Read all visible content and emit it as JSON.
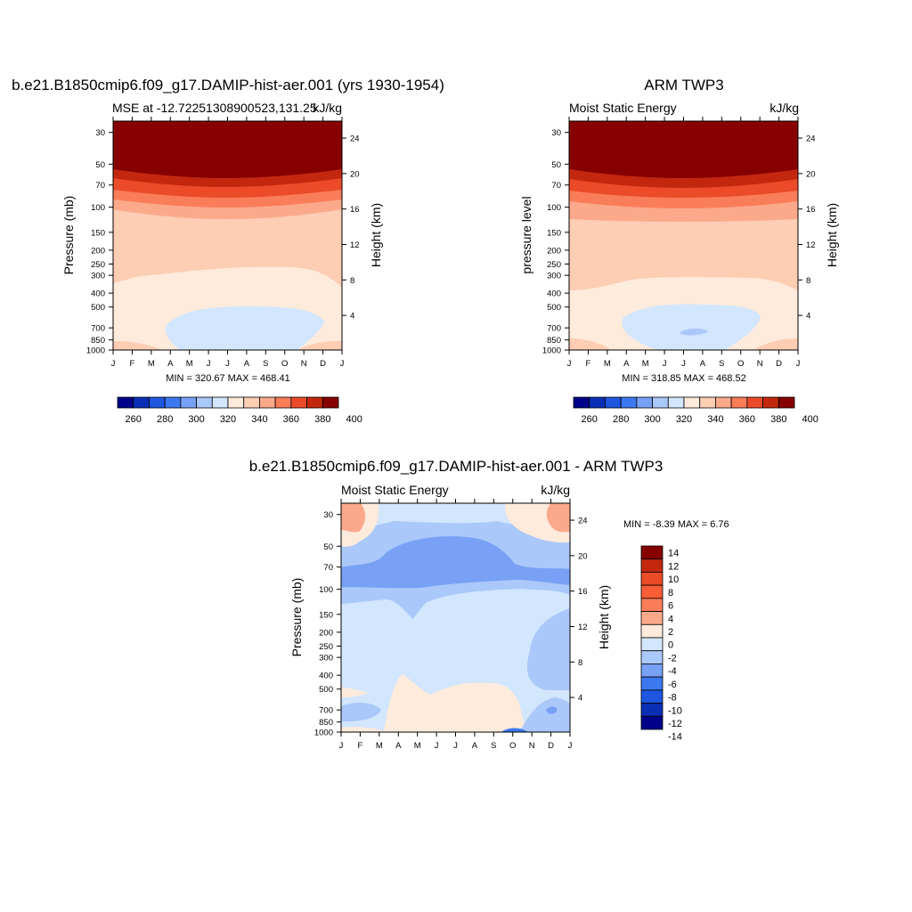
{
  "panels": [
    {
      "id": "model",
      "title": "b.e21.B1850cmip6.f09_g17.DAMIP-hist-aer.001 (yrs 1930-1954)",
      "subtitle_left": "MSE at -12.72251308900523,131.25",
      "subtitle_right": "kJ/kg",
      "ylabel_left": "Pressure (mb)",
      "ylabel_right": "Height (km)",
      "minmax": "MIN = 320.67  MAX = 468.41",
      "colorbar_labels": [
        "260",
        "280",
        "300",
        "320",
        "340",
        "360",
        "380",
        "400"
      ]
    },
    {
      "id": "obs",
      "title": "ARM TWP3",
      "subtitle_left": "Moist Static Energy",
      "subtitle_right": "kJ/kg",
      "ylabel_left": "pressure level",
      "ylabel_right": "Height (km)",
      "minmax": "MIN = 318.85  MAX = 468.52",
      "colorbar_labels": [
        "260",
        "280",
        "300",
        "320",
        "340",
        "360",
        "380",
        "400"
      ]
    },
    {
      "id": "diff",
      "title": "b.e21.B1850cmip6.f09_g17.DAMIP-hist-aer.001 - ARM TWP3",
      "subtitle_left": "Moist Static Energy",
      "subtitle_right": "kJ/kg",
      "ylabel_left": "Pressure (mb)",
      "ylabel_right": "Height (km)",
      "minmax": "MIN =  -8.39 MAX =   6.76",
      "colorbar_labels": [
        "14",
        "12",
        "10",
        "8",
        "6",
        "4",
        "2",
        "0",
        "-2",
        "-4",
        "-6",
        "-8",
        "-10",
        "-12",
        "-14"
      ]
    }
  ],
  "colors": {
    "abs_scale": [
      "#00008a",
      "#0a2fb5",
      "#1e56e0",
      "#3c78f0",
      "#78a0f5",
      "#aac8fa",
      "#d2e6fd",
      "#ffebdc",
      "#fdcdb4",
      "#fca98b",
      "#fa7d5a",
      "#eb4b28",
      "#c3280f",
      "#870000"
    ],
    "diff_scale": [
      "#870000",
      "#c3280f",
      "#eb4b28",
      "#fa5e37",
      "#fa7d5a",
      "#fca98b",
      "#ffebdc",
      "#d2e6fd",
      "#aac8fa",
      "#78a0f5",
      "#3c78f0",
      "#1e56e0",
      "#0a2fb5",
      "#00008a"
    ]
  },
  "chart_data": [
    {
      "type": "heatmap",
      "title": "b.e21.B1850cmip6.f09_g17.DAMIP-hist-aer.001 (yrs 1930-1954)",
      "subtitle": "MSE at -12.72251308900523,131.25",
      "units": "kJ/kg",
      "x_ticks": [
        "J",
        "F",
        "M",
        "A",
        "M",
        "J",
        "J",
        "A",
        "S",
        "O",
        "N",
        "D",
        "J"
      ],
      "y_ticks_pressure_mb": [
        30,
        50,
        70,
        100,
        150,
        200,
        250,
        300,
        400,
        500,
        700,
        850,
        1000
      ],
      "y_ticks_height_km": [
        4,
        8,
        12,
        16,
        20,
        24
      ],
      "ylabel": "Pressure (mb)",
      "ylabel_right": "Height (km)",
      "y_scale": "log",
      "min": 320.67,
      "max": 468.41,
      "contour_levels": [
        250,
        260,
        270,
        280,
        290,
        300,
        310,
        320,
        330,
        340,
        350,
        360,
        370,
        380,
        390,
        400
      ],
      "colorbar_labels": [
        260,
        280,
        300,
        320,
        340,
        360,
        380,
        400
      ],
      "band_boundaries_mb": {
        "above_400": [
          30,
          52
        ],
        "390_400": [
          52,
          60
        ],
        "380_390": [
          60,
          68
        ],
        "370_380": [
          68,
          80
        ],
        "360_370": [
          80,
          95
        ],
        "350_360": [
          95,
          120
        ],
        "340_350": [
          120,
          320
        ],
        "330_340": [
          320,
          1000
        ]
      },
      "region_320_330": {
        "months": "Feb-Dec",
        "pressure_mb": [
          500,
          1000
        ]
      }
    },
    {
      "type": "heatmap",
      "title": "ARM TWP3",
      "subtitle": "Moist Static Energy",
      "units": "kJ/kg",
      "x_ticks": [
        "J",
        "F",
        "M",
        "A",
        "M",
        "J",
        "J",
        "A",
        "S",
        "O",
        "N",
        "D",
        "J"
      ],
      "y_ticks_pressure_mb": [
        30,
        50,
        70,
        100,
        150,
        200,
        250,
        300,
        400,
        500,
        700,
        850,
        1000
      ],
      "y_ticks_height_km": [
        4,
        8,
        12,
        16,
        20,
        24
      ],
      "ylabel": "pressure level",
      "ylabel_right": "Height (km)",
      "y_scale": "log",
      "min": 318.85,
      "max": 468.52,
      "contour_levels": [
        250,
        260,
        270,
        280,
        290,
        300,
        310,
        320,
        330,
        340,
        350,
        360,
        370,
        380,
        390,
        400
      ],
      "colorbar_labels": [
        260,
        280,
        300,
        320,
        340,
        360,
        380,
        400
      ],
      "band_boundaries_mb": {
        "above_400": [
          30,
          52
        ],
        "390_400": [
          52,
          60
        ],
        "380_390": [
          60,
          68
        ],
        "370_380": [
          68,
          80
        ],
        "360_370": [
          80,
          95
        ],
        "350_360": [
          95,
          125
        ],
        "340_350": [
          125,
          380
        ],
        "330_340": [
          380,
          1000
        ]
      },
      "region_320_330": {
        "months": "Feb-Nov",
        "pressure_mb": [
          550,
          1000
        ]
      },
      "region_310_320": {
        "months": "Jul-Aug",
        "pressure_mb": [
          720,
          780
        ]
      }
    },
    {
      "type": "heatmap",
      "title": "b.e21.B1850cmip6.f09_g17.DAMIP-hist-aer.001 - ARM TWP3",
      "subtitle": "Moist Static Energy",
      "units": "kJ/kg",
      "x_ticks": [
        "J",
        "F",
        "M",
        "A",
        "M",
        "J",
        "J",
        "A",
        "S",
        "O",
        "N",
        "D",
        "J"
      ],
      "y_ticks_pressure_mb": [
        30,
        50,
        70,
        100,
        150,
        200,
        250,
        300,
        400,
        500,
        700,
        850,
        1000
      ],
      "y_ticks_height_km": [
        4,
        8,
        12,
        16,
        20,
        24
      ],
      "ylabel": "Pressure (mb)",
      "ylabel_right": "Height (km)",
      "y_scale": "log",
      "min": -8.39,
      "max": 6.76,
      "contour_levels": [
        -14,
        -12,
        -10,
        -8,
        -6,
        -4,
        -2,
        0,
        2,
        4,
        6,
        8,
        10,
        12,
        14
      ],
      "colorbar_labels": [
        14,
        12,
        10,
        8,
        6,
        4,
        2,
        0,
        -2,
        -4,
        -6,
        -8,
        -10,
        -12,
        -14
      ],
      "features": [
        {
          "value_range": [
            -6,
            -4
          ],
          "months": "Mar-Sep",
          "pressure_mb": [
            50,
            100
          ]
        },
        {
          "value_range": [
            -4,
            -2
          ],
          "months": "Jan-Dec",
          "pressure_mb": [
            40,
            130
          ]
        },
        {
          "value_range": [
            2,
            4
          ],
          "months": "Jan-Feb and Nov-Dec",
          "pressure_mb": [
            25,
            55
          ]
        },
        {
          "value_range": [
            0,
            2
          ],
          "months": "Apr-Oct",
          "pressure_mb": [
            450,
            1000
          ]
        }
      ]
    }
  ]
}
